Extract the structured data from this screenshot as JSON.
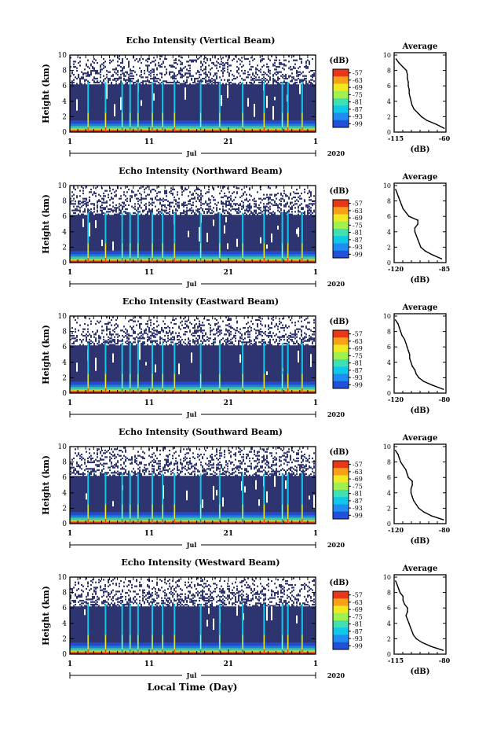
{
  "figure": {
    "xlabel_bottom": "Local Time (Day)",
    "colors": {
      "background": "#ffffff",
      "echo_base": "#2e3470",
      "colormap": [
        "#3a3a9a",
        "#2250d8",
        "#1e8cf0",
        "#10c8e8",
        "#40e0b0",
        "#a0f050",
        "#f0e820",
        "#f8a018",
        "#e83818"
      ]
    }
  },
  "chart_data": [
    {
      "type": "heatmap",
      "title": "Echo Intensity (Vertical Beam)",
      "ylabel": "Height (km)",
      "ylim": [
        0,
        10
      ],
      "yticks": [
        "0",
        "2",
        "4",
        "6",
        "8",
        "10"
      ],
      "xlim": [
        1,
        32
      ],
      "xticks": [
        "1",
        "11",
        "21",
        "1"
      ],
      "month_label": "Jul",
      "year_label": "2020",
      "colorbar": {
        "unit": "(dB)",
        "ticks": [
          "-57",
          "-63",
          "-69",
          "-75",
          "-81",
          "-87",
          "-93",
          "-99"
        ]
      },
      "avg_panel": {
        "title": "Average",
        "xlabel": "(dB)",
        "xticks": [
          "-115",
          "-60"
        ],
        "xlim": [
          -115,
          -60
        ],
        "heights": [
          0.5,
          1,
          1.5,
          2,
          2.5,
          3,
          3.5,
          4,
          4.5,
          5,
          5.5,
          6,
          6.5,
          7,
          7.5,
          8,
          8.5,
          9,
          9.5
        ],
        "values": [
          -62,
          -70,
          -80,
          -86,
          -90,
          -94,
          -96,
          -97,
          -98,
          -99,
          -99,
          -100,
          -100,
          -101,
          -101,
          -102,
          -106,
          -110,
          -113
        ]
      }
    },
    {
      "type": "heatmap",
      "title": "Echo Intensity (Northward Beam)",
      "ylabel": "Height (km)",
      "ylim": [
        0,
        10
      ],
      "yticks": [
        "0",
        "2",
        "4",
        "6",
        "8",
        "10"
      ],
      "xlim": [
        1,
        32
      ],
      "xticks": [
        "1",
        "11",
        "21",
        "1"
      ],
      "month_label": "Jul",
      "year_label": "2020",
      "colorbar": {
        "unit": "(dB)",
        "ticks": [
          "-57",
          "-63",
          "-69",
          "-75",
          "-81",
          "-87",
          "-93",
          "-99"
        ]
      },
      "avg_panel": {
        "title": "Average",
        "xlabel": "(dB)",
        "xticks": [
          "-120",
          "-85"
        ],
        "xlim": [
          -120,
          -85
        ],
        "heights": [
          0.5,
          1,
          1.5,
          2,
          2.5,
          3,
          3.5,
          4,
          4.5,
          5,
          5.5,
          6,
          6.5,
          7,
          7.5,
          8,
          8.5,
          9,
          9.5
        ],
        "values": [
          -88,
          -94,
          -99,
          -102,
          -103,
          -104,
          -105,
          -106,
          -106,
          -104,
          -104,
          -110,
          -112,
          -114,
          -115,
          -116,
          -117,
          -118,
          -119
        ]
      }
    },
    {
      "type": "heatmap",
      "title": "Echo Intensity (Eastward Beam)",
      "ylabel": "Height (km)",
      "ylim": [
        0,
        10
      ],
      "yticks": [
        "0",
        "2",
        "4",
        "6",
        "8",
        "10"
      ],
      "xlim": [
        1,
        32
      ],
      "xticks": [
        "1",
        "11",
        "21",
        "1"
      ],
      "month_label": "Jul",
      "year_label": "2020",
      "colorbar": {
        "unit": "(dB)",
        "ticks": [
          "-57",
          "-63",
          "-69",
          "-75",
          "-81",
          "-87",
          "-93",
          "-99"
        ]
      },
      "avg_panel": {
        "title": "Average",
        "xlabel": "(dB)",
        "xticks": [
          "-120",
          "-80"
        ],
        "xlim": [
          -120,
          -80
        ],
        "heights": [
          0.5,
          1,
          1.5,
          2,
          2.5,
          3,
          3.5,
          4,
          4.5,
          5,
          5.5,
          6,
          6.5,
          7,
          7.5,
          8,
          8.5,
          9,
          9.5
        ],
        "values": [
          -82,
          -90,
          -97,
          -101,
          -103,
          -104,
          -106,
          -107,
          -108,
          -108,
          -109,
          -110,
          -111,
          -112,
          -114,
          -115,
          -116,
          -117,
          -119
        ]
      }
    },
    {
      "type": "heatmap",
      "title": "Echo Intensity (Southward Beam)",
      "ylabel": "Height (km)",
      "ylim": [
        0,
        10
      ],
      "yticks": [
        "0",
        "2",
        "4",
        "6",
        "8",
        "10"
      ],
      "xlim": [
        1,
        32
      ],
      "xticks": [
        "1",
        "11",
        "21",
        "1"
      ],
      "month_label": "Jul",
      "year_label": "2020",
      "colorbar": {
        "unit": "(dB)",
        "ticks": [
          "-57",
          "-63",
          "-69",
          "-75",
          "-81",
          "-87",
          "-93",
          "-99"
        ]
      },
      "avg_panel": {
        "title": "Average",
        "xlabel": "(dB)",
        "xticks": [
          "-120",
          "-80"
        ],
        "xlim": [
          -120,
          -80
        ],
        "heights": [
          0.5,
          1,
          1.5,
          2,
          2.5,
          3,
          3.5,
          4,
          4.5,
          5,
          5.5,
          6,
          6.5,
          7,
          7.5,
          8,
          8.5,
          9,
          9.5
        ],
        "values": [
          -82,
          -91,
          -97,
          -101,
          -103,
          -105,
          -106,
          -107,
          -107,
          -106,
          -106,
          -109,
          -110,
          -111,
          -113,
          -115,
          -116,
          -117,
          -119
        ]
      }
    },
    {
      "type": "heatmap",
      "title": "Echo Intensity (Westward Beam)",
      "ylabel": "Height (km)",
      "ylim": [
        0,
        10
      ],
      "yticks": [
        "0",
        "2",
        "4",
        "6",
        "8",
        "10"
      ],
      "xlim": [
        1,
        32
      ],
      "xticks": [
        "1",
        "11",
        "21",
        "1"
      ],
      "month_label": "Jul",
      "year_label": "2020",
      "colorbar": {
        "unit": "(dB)",
        "ticks": [
          "-57",
          "-63",
          "-69",
          "-75",
          "-81",
          "-87",
          "-93",
          "-99"
        ]
      },
      "avg_panel": {
        "title": "Average",
        "xlabel": "(dB)",
        "xticks": [
          "-115",
          "-80"
        ],
        "xlim": [
          -115,
          -80
        ],
        "heights": [
          0.5,
          1,
          1.5,
          2,
          2.5,
          3,
          3.5,
          4,
          4.5,
          5,
          5.5,
          6,
          6.5,
          7,
          7.5,
          8,
          8.5,
          9,
          9.5
        ],
        "values": [
          -82,
          -90,
          -96,
          -100,
          -102,
          -103,
          -104,
          -105,
          -106,
          -107,
          -106,
          -106,
          -108,
          -109,
          -109,
          -111,
          -112,
          -113,
          -114
        ]
      }
    }
  ]
}
